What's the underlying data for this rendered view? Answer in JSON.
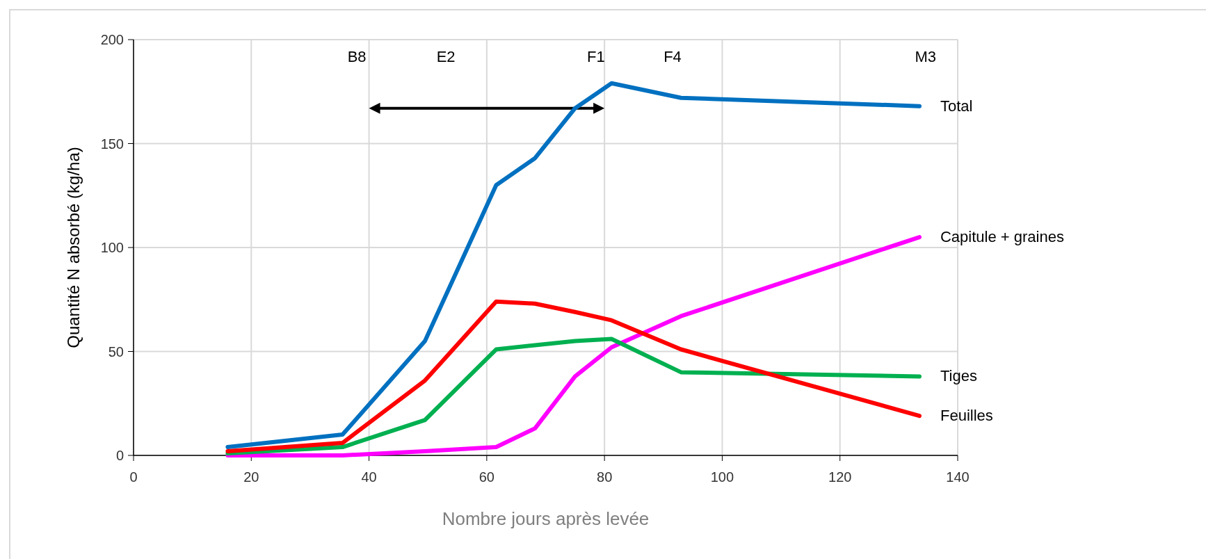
{
  "chart_data": {
    "type": "line",
    "xlabel": "Nombre jours après levée",
    "ylabel": "Quantité N absorbé (kg/ha)",
    "xlim": [
      0,
      140
    ],
    "xticks": [
      0,
      20,
      40,
      60,
      80,
      100,
      120,
      140
    ],
    "ylim": [
      0,
      200
    ],
    "yticks": [
      0,
      50,
      100,
      150,
      200
    ],
    "grid": true,
    "marker": "none",
    "line_style": "solid",
    "legend": false,
    "annotations": [
      "B8",
      "E2",
      "F1",
      "F4",
      "M3"
    ],
    "series": [
      {
        "name": "Total",
        "color": "#0070c0",
        "x": [
          16,
          35.5,
          49.5,
          61.6,
          68.2,
          75,
          81.2,
          93,
          133.5
        ],
        "values": [
          4,
          10,
          55,
          130,
          143,
          167,
          179,
          172,
          168
        ]
      },
      {
        "name": "Capitule + graines",
        "color": "#ff00ff",
        "x": [
          16,
          35.5,
          49.5,
          61.6,
          68.2,
          75,
          81.2,
          93,
          133.5
        ],
        "values": [
          0,
          0,
          2,
          4,
          13,
          38,
          52,
          67,
          105
        ]
      },
      {
        "name": "Tiges",
        "color": "#00b050",
        "x": [
          16,
          35.5,
          49.5,
          61.6,
          68.2,
          75,
          81.2,
          93,
          133.5
        ],
        "values": [
          1,
          4,
          17,
          51,
          53,
          55,
          56,
          40,
          38
        ]
      },
      {
        "name": "Feuilles",
        "color": "#ff0000",
        "x": [
          16,
          35.5,
          49.5,
          61.6,
          68.2,
          75,
          81.2,
          93,
          133.5
        ],
        "values": [
          2,
          6,
          36,
          74,
          73,
          69,
          65,
          51,
          19
        ]
      }
    ]
  }
}
